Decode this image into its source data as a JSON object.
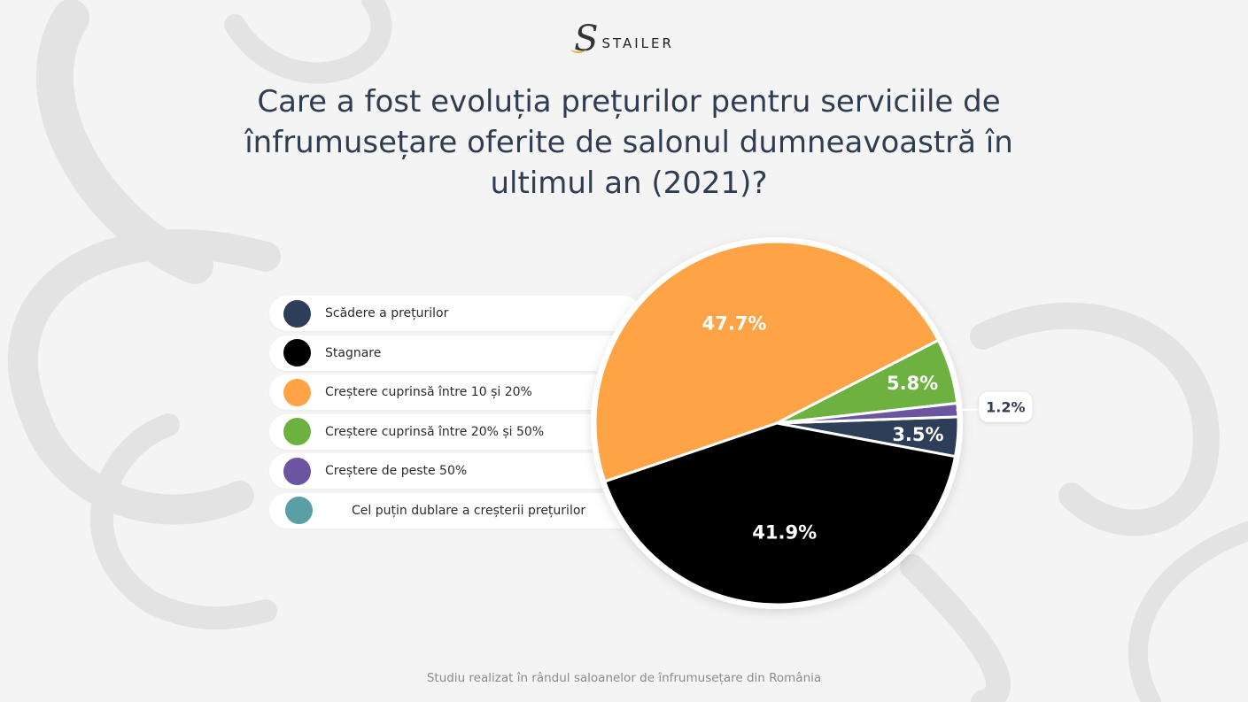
{
  "brand": {
    "logo_text": "STAILER"
  },
  "title": "Care a fost evoluția prețurilor pentru serviciile de înfrumusețare oferite de salonul dumneavoastră în ultimul an (2021)?",
  "footer": "Studiu realizat în rândul saloanelor de înfrumusețare din România",
  "legend": [
    {
      "label": "Scădere a prețurilor",
      "color": "#2d3e58"
    },
    {
      "label": "Stagnare",
      "color": "#000000"
    },
    {
      "label": "Creștere cuprinsă între 10 și 20%",
      "color": "#ffa347"
    },
    {
      "label": "Creștere cuprinsă între 20% și 50%",
      "color": "#6db141"
    },
    {
      "label": "Creștere de peste 50%",
      "color": "#6c55a0"
    },
    {
      "label": "Cel puțin dublare a creșterii prețurilor",
      "color": "#5a9ea6"
    }
  ],
  "chart_data": {
    "type": "pie",
    "title": "Care a fost evoluția prețurilor pentru serviciile de înfrumusețare oferite de salonul dumneavoastră în ultimul an (2021)?",
    "slices": [
      {
        "label": "Scădere a prețurilor",
        "value": 3.5,
        "display": "3.5%",
        "color": "#2d3e58"
      },
      {
        "label": "Stagnare",
        "value": 41.9,
        "display": "41.9%",
        "color": "#000000"
      },
      {
        "label": "Creștere cuprinsă între 10 și 20%",
        "value": 47.7,
        "display": "47.7%",
        "color": "#ffa347"
      },
      {
        "label": "Creștere cuprinsă între 20% și 50%",
        "value": 5.8,
        "display": "5.8%",
        "color": "#6db141"
      },
      {
        "label": "Creștere de peste 50%",
        "value": 1.2,
        "display": "1.2%",
        "color": "#6c55a0"
      },
      {
        "label": "Cel puțin dublare a creșterii prețurilor",
        "value": 0,
        "display": "",
        "color": "#5a9ea6"
      }
    ]
  }
}
